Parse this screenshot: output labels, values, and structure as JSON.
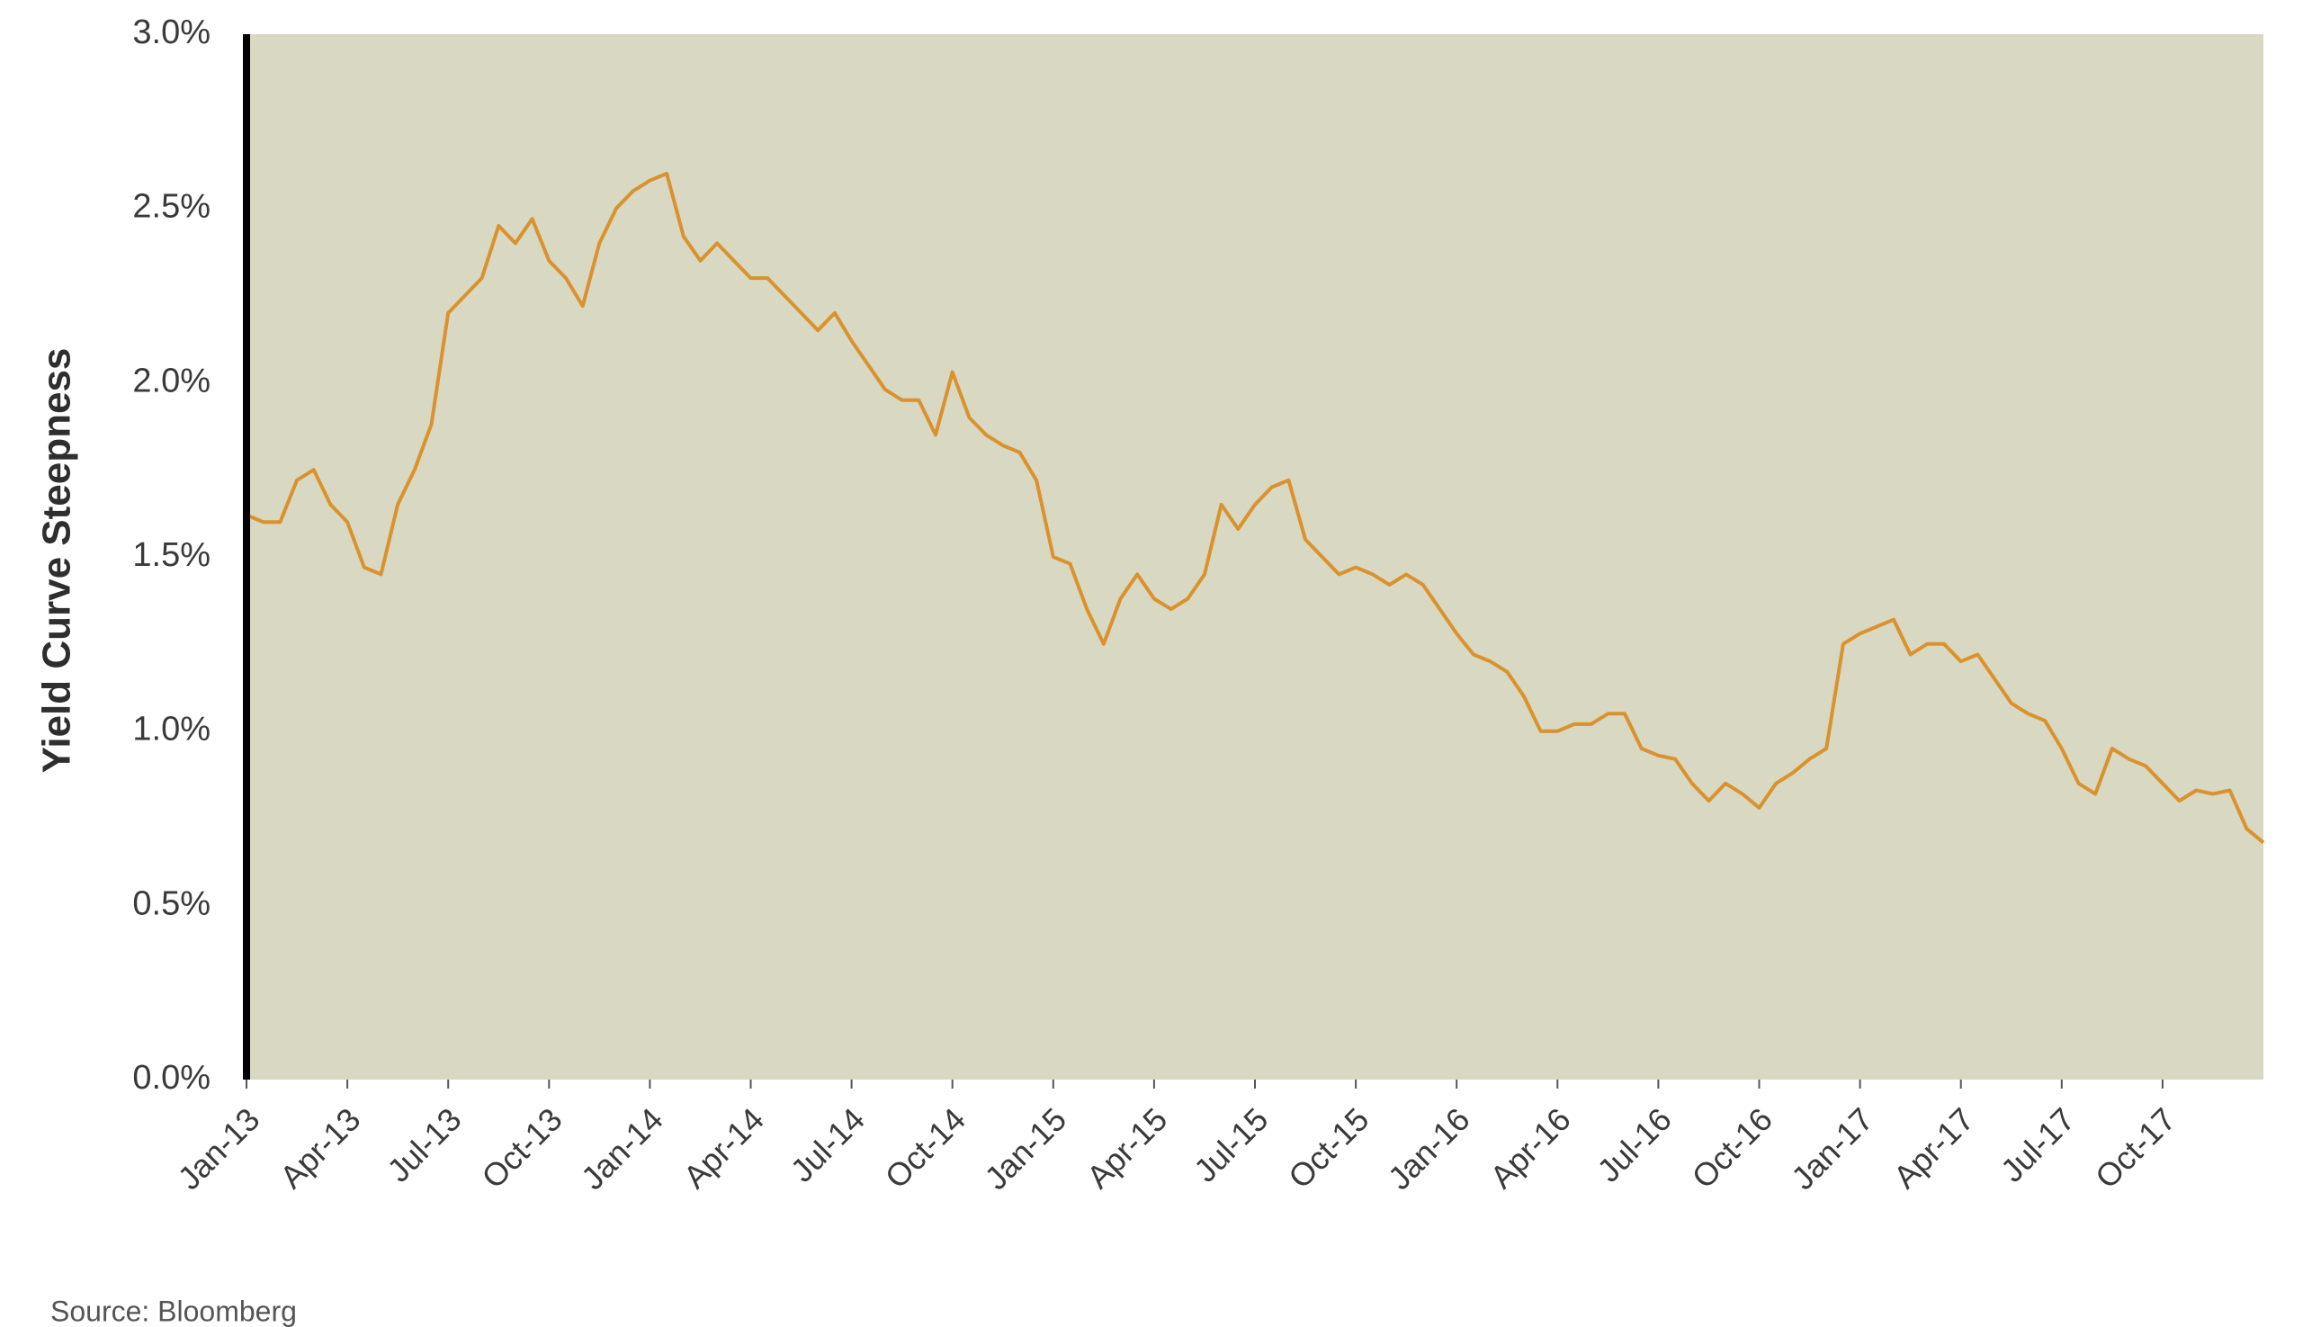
{
  "chart_data": {
    "type": "line",
    "y_label": "Yield Curve Steepness",
    "source": "Source: Bloomberg",
    "color": "#d9922e",
    "background": "#d9d8c2",
    "x": [
      0,
      0.5,
      1,
      1.5,
      2,
      2.5,
      3,
      3.5,
      4,
      4.5,
      5,
      5.5,
      6,
      6.5,
      7,
      7.5,
      8,
      8.5,
      9,
      9.5,
      10,
      10.5,
      11,
      11.5,
      12,
      12.5,
      13,
      13.5,
      14,
      14.5,
      15,
      15.5,
      16,
      16.5,
      17,
      17.5,
      18,
      18.5,
      19,
      19.5,
      20,
      20.5,
      21,
      21.5,
      22,
      22.5,
      23,
      23.5,
      24,
      24.5,
      25,
      25.5,
      26,
      26.5,
      27,
      27.5,
      28,
      28.5,
      29,
      29.5,
      30,
      30.5,
      31,
      31.5,
      32,
      32.5,
      33,
      33.5,
      34,
      34.5,
      35,
      35.5,
      36,
      36.5,
      37,
      37.5,
      38,
      38.5,
      39,
      39.5,
      40,
      40.5,
      41,
      41.5,
      42,
      42.5,
      43,
      43.5,
      44,
      44.5,
      45,
      45.5,
      46,
      46.5,
      47,
      47.5,
      48,
      48.5,
      49,
      49.5,
      50,
      50.5,
      51,
      51.5,
      52,
      52.5,
      53,
      53.5,
      54,
      54.5,
      55,
      55.5,
      56,
      56.5,
      57,
      57.5,
      58,
      58.5,
      59,
      59.5,
      60
    ],
    "values": [
      1.62,
      1.6,
      1.6,
      1.72,
      1.75,
      1.65,
      1.6,
      1.47,
      1.45,
      1.65,
      1.75,
      1.88,
      2.2,
      2.25,
      2.3,
      2.45,
      2.4,
      2.47,
      2.35,
      2.3,
      2.22,
      2.4,
      2.5,
      2.55,
      2.58,
      2.6,
      2.42,
      2.35,
      2.4,
      2.35,
      2.3,
      2.3,
      2.25,
      2.2,
      2.15,
      2.2,
      2.12,
      2.05,
      1.98,
      1.95,
      1.95,
      1.85,
      2.03,
      1.9,
      1.85,
      1.82,
      1.8,
      1.72,
      1.5,
      1.48,
      1.35,
      1.25,
      1.38,
      1.45,
      1.38,
      1.35,
      1.38,
      1.45,
      1.65,
      1.58,
      1.65,
      1.7,
      1.72,
      1.55,
      1.5,
      1.45,
      1.47,
      1.45,
      1.42,
      1.45,
      1.42,
      1.35,
      1.28,
      1.22,
      1.2,
      1.17,
      1.1,
      1.0,
      1.0,
      1.02,
      1.02,
      1.05,
      1.05,
      0.95,
      0.93,
      0.92,
      0.85,
      0.8,
      0.85,
      0.82,
      0.78,
      0.85,
      0.88,
      0.92,
      0.95,
      1.25,
      1.28,
      1.3,
      1.32,
      1.22,
      1.25,
      1.25,
      1.2,
      1.22,
      1.15,
      1.08,
      1.05,
      1.03,
      0.95,
      0.85,
      0.82,
      0.95,
      0.92,
      0.9,
      0.85,
      0.8,
      0.83,
      0.82,
      0.83,
      0.72,
      0.68
    ],
    "xlim": [
      0,
      60
    ],
    "xticks": [
      {
        "value": 0,
        "label": "Jan-13"
      },
      {
        "value": 3,
        "label": "Apr-13"
      },
      {
        "value": 6,
        "label": "Jul-13"
      },
      {
        "value": 9,
        "label": "Oct-13"
      },
      {
        "value": 12,
        "label": "Jan-14"
      },
      {
        "value": 15,
        "label": "Apr-14"
      },
      {
        "value": 18,
        "label": "Jul-14"
      },
      {
        "value": 21,
        "label": "Oct-14"
      },
      {
        "value": 24,
        "label": "Jan-15"
      },
      {
        "value": 27,
        "label": "Apr-15"
      },
      {
        "value": 30,
        "label": "Jul-15"
      },
      {
        "value": 33,
        "label": "Oct-15"
      },
      {
        "value": 36,
        "label": "Jan-16"
      },
      {
        "value": 39,
        "label": "Apr-16"
      },
      {
        "value": 42,
        "label": "Jul-16"
      },
      {
        "value": 45,
        "label": "Oct-16"
      },
      {
        "value": 48,
        "label": "Jan-17"
      },
      {
        "value": 51,
        "label": "Apr-17"
      },
      {
        "value": 54,
        "label": "Jul-17"
      },
      {
        "value": 57,
        "label": "Oct-17"
      }
    ],
    "ylim": [
      0,
      3
    ],
    "yticks": [
      {
        "value": 0,
        "label": "0.0%"
      },
      {
        "value": 0.5,
        "label": "0.5%"
      },
      {
        "value": 1,
        "label": "1.0%"
      },
      {
        "value": 1.5,
        "label": "1.5%"
      },
      {
        "value": 2,
        "label": "2.0%"
      },
      {
        "value": 2.5,
        "label": "2.5%"
      },
      {
        "value": 3,
        "label": "3.0%"
      }
    ]
  }
}
